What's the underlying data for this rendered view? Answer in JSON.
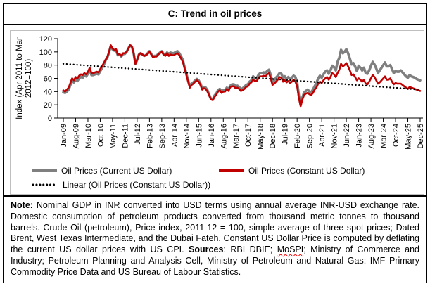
{
  "figure": {
    "title": "C: Trend in oil prices"
  },
  "chart_data": {
    "type": "line",
    "title": "C: Trend in oil prices",
    "ylabel_line1": "Index (Apr 2011 to Mar",
    "ylabel_line2": "2012=100)",
    "ylim": [
      0,
      120
    ],
    "yticks": [
      0,
      20,
      40,
      60,
      80,
      100,
      120
    ],
    "x_start": "Jan-09",
    "x_end": "Dec-25",
    "xtick_interval_months": 7,
    "xtick_labels": [
      "Jan-09",
      "Aug-09",
      "Mar-10",
      "Oct-10",
      "May-11",
      "Dec-11",
      "Jul-12",
      "Feb-13",
      "Sep-13",
      "Apr-14",
      "Nov-14",
      "Jun-15",
      "Jan-16",
      "Aug-16",
      "Mar-17",
      "Oct-17",
      "May-18",
      "Dec-18",
      "Jul-19",
      "Feb-20",
      "Sep-20",
      "Apr-21",
      "Nov-21",
      "Jun-22",
      "Jan-23",
      "Aug-23",
      "Mar-24",
      "Oct-24",
      "May-25",
      "Dec-25"
    ],
    "grid": false,
    "legend_position": "bottom",
    "series": [
      {
        "name": "Oil Prices (Current US Dollar)",
        "color": "#7F7F7F",
        "values": [
          39,
          38,
          40,
          43,
          50,
          56,
          54,
          58,
          56,
          60,
          62,
          61,
          65,
          63,
          67,
          73,
          65,
          65,
          66,
          67,
          66,
          71,
          75,
          80,
          87,
          91,
          99,
          109,
          104,
          102,
          103,
          95,
          96,
          93,
          97,
          97,
          100,
          105,
          110,
          108,
          98,
          82,
          88,
          96,
          98,
          96,
          94,
          95,
          98,
          101,
          97,
          93,
          94,
          94,
          97,
          99,
          101,
          97,
          95,
          99,
          97,
          99,
          98,
          98,
          100,
          101,
          98,
          93,
          88,
          77,
          67,
          57,
          48,
          52,
          54,
          57,
          59,
          57,
          52,
          45,
          47,
          46,
          42,
          35,
          29,
          28,
          34,
          37,
          42,
          44,
          40,
          42,
          42,
          46,
          43,
          49,
          51,
          51,
          48,
          49,
          47,
          43,
          45,
          47,
          50,
          51,
          55,
          57,
          63,
          60,
          60,
          65,
          68,
          68,
          69,
          68,
          71,
          73,
          65,
          54,
          57,
          61,
          64,
          68,
          67,
          61,
          63,
          59,
          62,
          58,
          61,
          64,
          62,
          54,
          34,
          20,
          31,
          39,
          41,
          43,
          40,
          39,
          43,
          48,
          53,
          60,
          64,
          61,
          66,
          70,
          72,
          67,
          72,
          79,
          77,
          72,
          85,
          91,
          103,
          98,
          100,
          104,
          98,
          90,
          81,
          83,
          78,
          71,
          79,
          76,
          72,
          76,
          68,
          67,
          72,
          79,
          85,
          81,
          75,
          68,
          72,
          76,
          80,
          84,
          78,
          78,
          80,
          74,
          68,
          71,
          70,
          70,
          72,
          69,
          66,
          63,
          61,
          65,
          63,
          62,
          61,
          59,
          58,
          57
        ]
      },
      {
        "name": "Oil Prices (Constant US Dollar)",
        "color": "#C00000",
        "values": [
          42,
          40,
          43,
          46,
          53,
          60,
          57,
          62,
          60,
          64,
          66,
          65,
          68,
          66,
          70,
          76,
          68,
          68,
          69,
          70,
          69,
          74,
          78,
          83,
          88,
          92,
          100,
          110,
          105,
          103,
          104,
          96,
          97,
          94,
          98,
          98,
          100,
          105,
          110,
          108,
          98,
          82,
          88,
          96,
          98,
          96,
          94,
          95,
          97,
          100,
          96,
          92,
          93,
          93,
          96,
          98,
          100,
          96,
          94,
          98,
          94,
          96,
          95,
          95,
          97,
          98,
          95,
          90,
          85,
          75,
          65,
          55,
          46,
          50,
          52,
          55,
          57,
          55,
          50,
          43,
          45,
          44,
          40,
          34,
          28,
          27,
          32,
          35,
          40,
          42,
          38,
          40,
          40,
          44,
          41,
          47,
          48,
          48,
          45,
          46,
          44,
          41,
          42,
          44,
          47,
          48,
          52,
          54,
          58,
          56,
          56,
          60,
          63,
          63,
          64,
          63,
          66,
          68,
          60,
          50,
          52,
          55,
          58,
          62,
          61,
          55,
          57,
          54,
          56,
          53,
          55,
          58,
          55,
          48,
          30,
          18,
          28,
          35,
          37,
          38,
          36,
          35,
          38,
          43,
          46,
          52,
          55,
          53,
          57,
          60,
          62,
          58,
          62,
          68,
          66,
          62,
          68,
          73,
          82,
          78,
          80,
          83,
          78,
          72,
          65,
          66,
          62,
          57,
          60,
          58,
          55,
          58,
          52,
          51,
          55,
          60,
          65,
          62,
          57,
          52,
          54,
          57,
          60,
          63,
          58,
          58,
          60,
          55,
          51,
          53,
          52,
          52,
          52,
          50,
          48,
          46,
          44,
          47,
          46,
          45,
          44,
          43,
          42,
          41
        ]
      }
    ],
    "trend": {
      "name": "Linear (Oil Prices (Constant US Dollar))",
      "color": "#000000",
      "style": "dotted",
      "start_value": 82,
      "end_value": 43
    }
  },
  "legend": {
    "current": "Oil Prices (Current US Dollar)",
    "constant": "Oil Prices (Constant US Dollar)",
    "linear": "Linear (Oil Prices (Constant US Dollar))"
  },
  "note": {
    "segments": [
      {
        "text": "Note:",
        "bold": true
      },
      {
        "text": " Nominal GDP in INR converted into USD terms using annual average INR-USD exchange rate. Domestic consumption of petroleum products converted from thousand metric tonnes to thousand barrels. Crude Oil (petroleum), Price index, 2011-12 = 100, simple average of three spot prices; Dated Brent, West Texas Intermediate, and the Dubai Fateh. Constant US Dollar Price is computed by deflating the current US dollar prices with US CPI. ",
        "bold": false
      },
      {
        "text": "Sources",
        "bold": true
      },
      {
        "text": ": RBI DBIE; ",
        "bold": false
      },
      {
        "text": "MoSPI",
        "bold": false,
        "squiggle": true
      },
      {
        "text": "; Ministry of Commerce and Industry; Petroleum Planning and Analysis Cell, Ministry of Petroleum and Natural Gas; IMF Primary Commodity Price Data and US Bureau of Labour Statistics.",
        "bold": false
      }
    ]
  }
}
